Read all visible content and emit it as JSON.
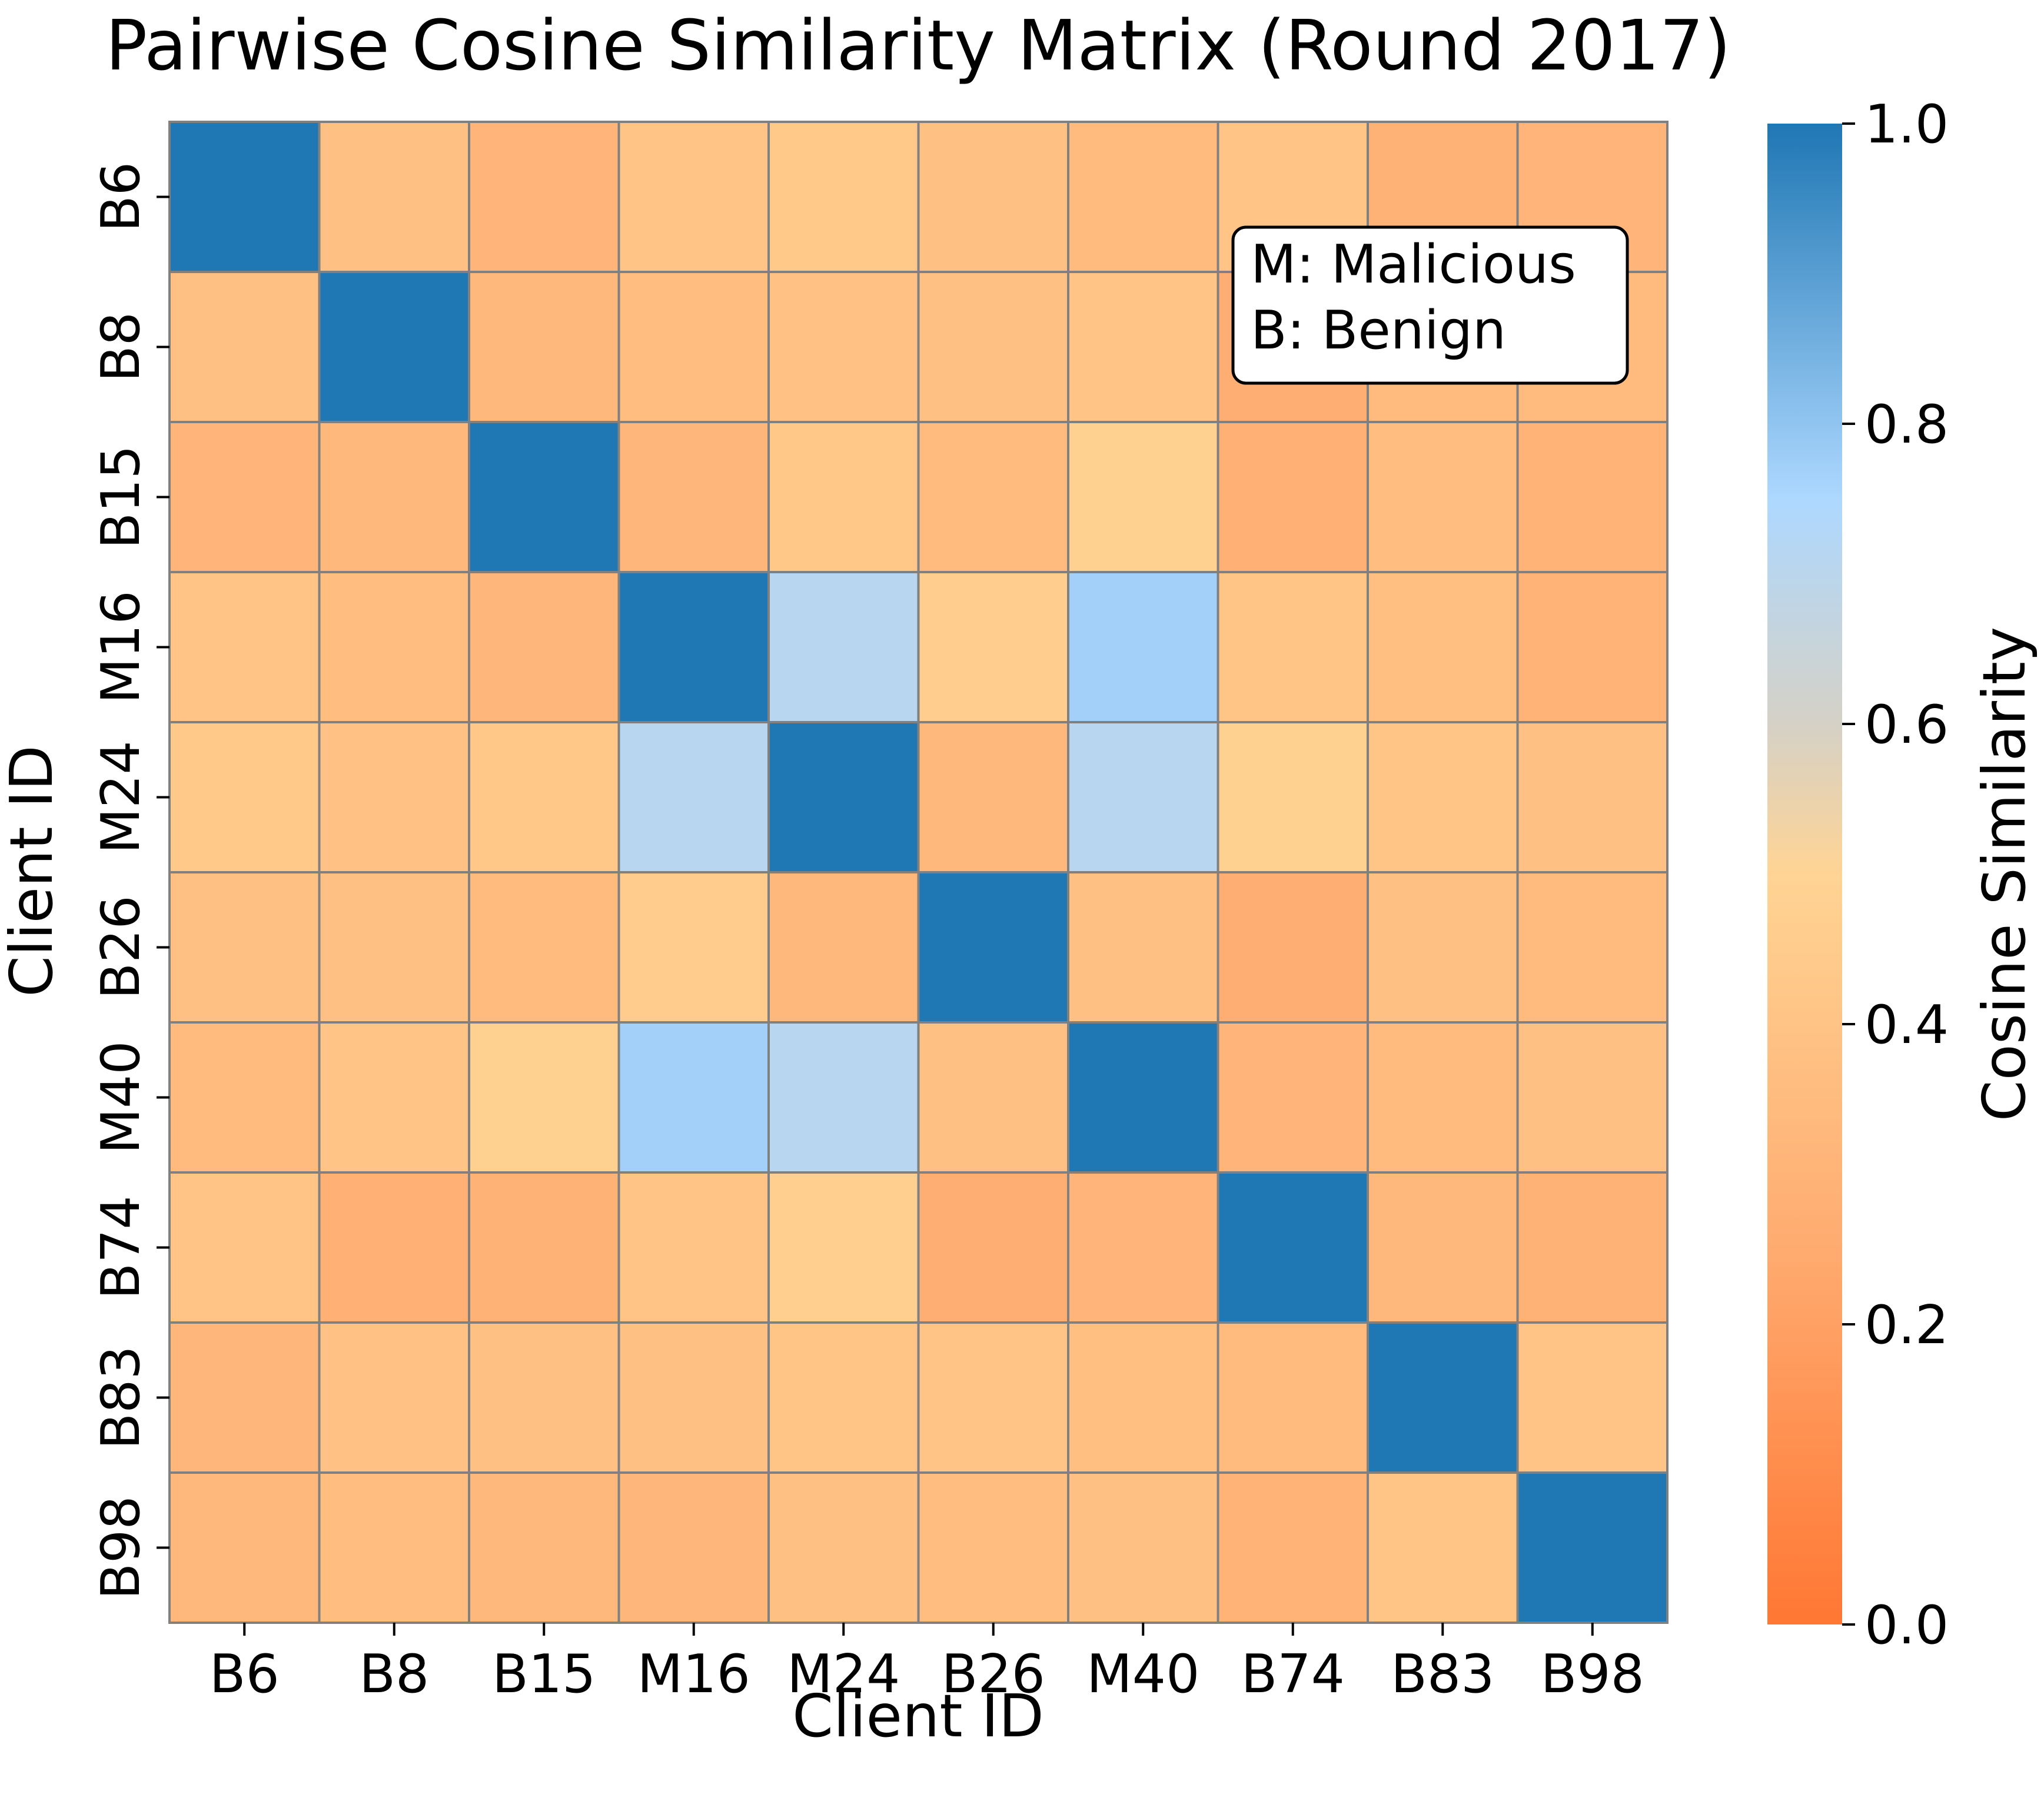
{
  "chart_data": {
    "type": "heatmap",
    "title": "Pairwise Cosine Similarity Matrix (Round 2017)",
    "xlabel": "Client ID",
    "ylabel": "Client ID",
    "categories": [
      "B6",
      "B8",
      "B15",
      "M16",
      "M24",
      "B26",
      "M40",
      "B74",
      "B83",
      "B98"
    ],
    "values": [
      [
        1.0,
        0.38,
        0.31,
        0.4,
        0.43,
        0.38,
        0.34,
        0.4,
        0.29,
        0.31
      ],
      [
        0.38,
        1.0,
        0.33,
        0.36,
        0.39,
        0.38,
        0.4,
        0.27,
        0.34,
        0.34
      ],
      [
        0.31,
        0.33,
        1.0,
        0.32,
        0.42,
        0.34,
        0.48,
        0.28,
        0.36,
        0.3
      ],
      [
        0.4,
        0.36,
        0.32,
        1.0,
        0.71,
        0.46,
        0.77,
        0.41,
        0.37,
        0.3
      ],
      [
        0.43,
        0.39,
        0.42,
        0.71,
        1.0,
        0.33,
        0.71,
        0.48,
        0.41,
        0.38
      ],
      [
        0.38,
        0.38,
        0.35,
        0.45,
        0.33,
        1.0,
        0.38,
        0.27,
        0.38,
        0.35
      ],
      [
        0.34,
        0.4,
        0.48,
        0.77,
        0.71,
        0.38,
        1.0,
        0.31,
        0.35,
        0.38
      ],
      [
        0.4,
        0.28,
        0.29,
        0.4,
        0.47,
        0.27,
        0.31,
        1.0,
        0.33,
        0.29
      ],
      [
        0.32,
        0.39,
        0.38,
        0.38,
        0.41,
        0.4,
        0.37,
        0.34,
        1.0,
        0.4
      ],
      [
        0.33,
        0.36,
        0.33,
        0.32,
        0.38,
        0.36,
        0.38,
        0.3,
        0.41,
        1.0
      ]
    ],
    "colorbar": {
      "label": "Cosine Similarity",
      "ticks": [
        "0.0",
        "0.2",
        "0.4",
        "0.6",
        "0.8",
        "1.0"
      ],
      "range": [
        0,
        1
      ]
    },
    "legend_lines": [
      "M: Malicious",
      "B: Benign"
    ],
    "legend_position": "top-right"
  },
  "colors": {
    "low": "#ff7733",
    "mid_low": "#ffab70",
    "mid": "#ffd494",
    "mid_high": "#add8ff",
    "high": "#1f77b4",
    "grid": "#808080"
  }
}
